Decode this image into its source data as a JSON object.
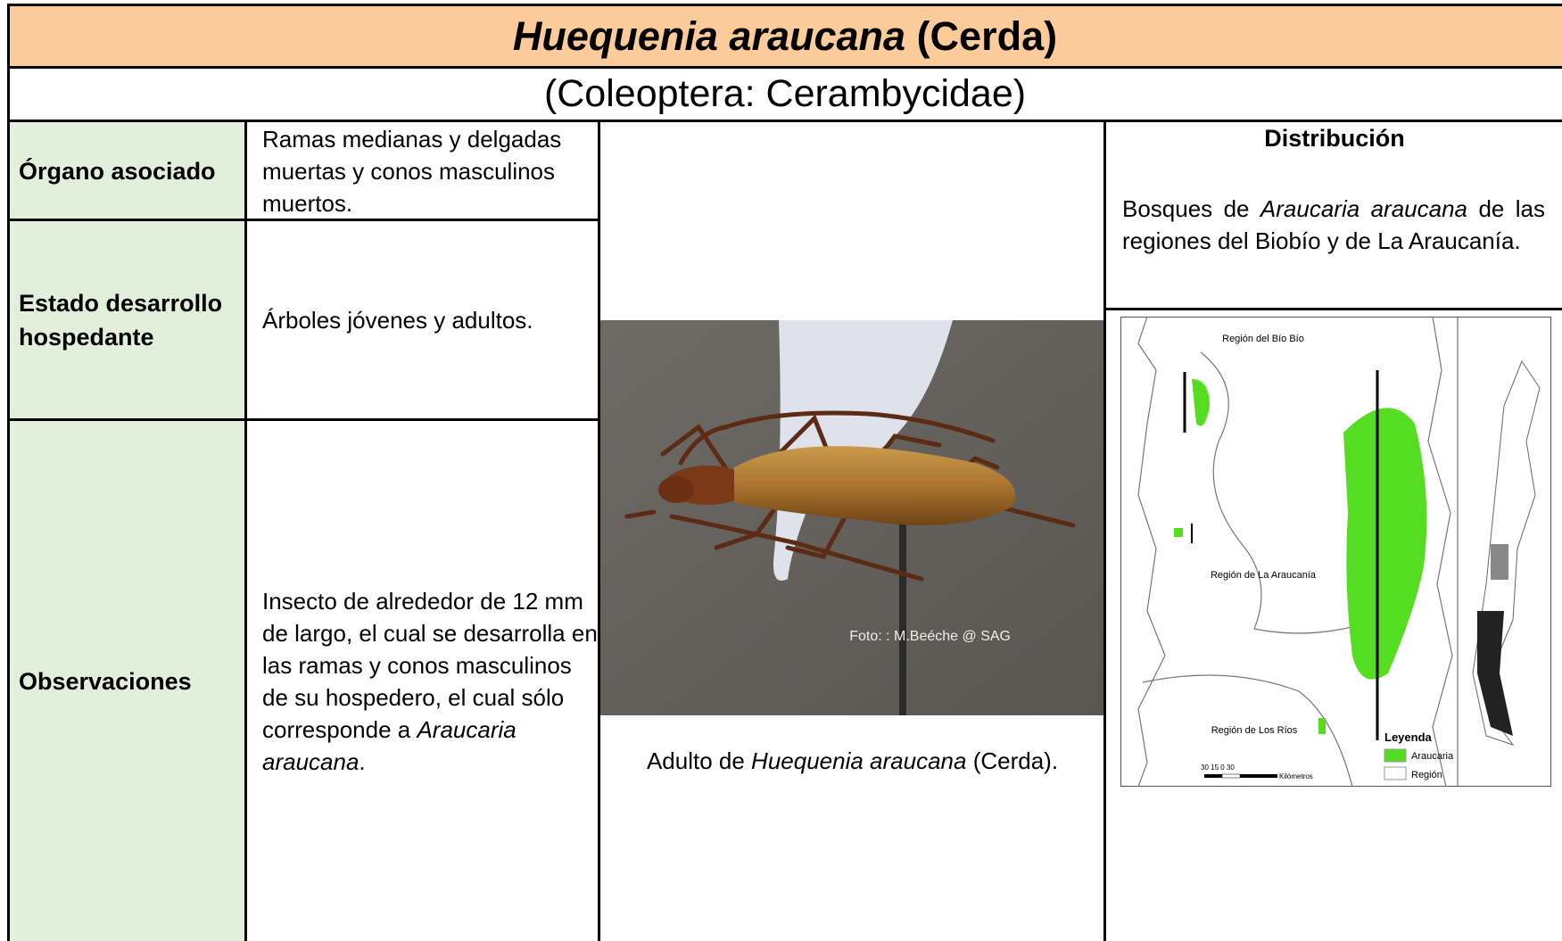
{
  "header": {
    "title_species": "Huequenia araucana",
    "title_author": "(Cerda)",
    "subtitle": "(Coleoptera: Cerambycidae)"
  },
  "rows": [
    {
      "label": "Órgano asociado",
      "value": "Ramas medianas y delgadas muertas y conos masculinos muertos."
    },
    {
      "label": "Estado desarrollo hospedante",
      "value": "Árboles jóvenes y adultos."
    },
    {
      "label": "Observaciones",
      "value": "Insecto de alrededor de 12 mm de largo, el cual se desarrolla en las ramas y conos masculinos de su hospedero, el cual sólo corresponde a",
      "value_italic": "Araucaria araucana",
      "value_end": "."
    }
  ],
  "photo": {
    "credit": "Foto: : M.Beéche @ SAG",
    "caption_prefix": "Adulto de",
    "caption_italic": "Huequenia araucana",
    "caption_suffix": "(Cerda)."
  },
  "distribution": {
    "heading": "Distribución",
    "text_prefix": "Bosques de",
    "text_italic": "Araucaria araucana",
    "text_suffix": "de las regiones del Biobío y de La Araucanía."
  },
  "map": {
    "labels": [
      "Región del Bío Bío",
      "Región de La Araucanía",
      "Región de Los Ríos"
    ],
    "legend_title": "Leyenda",
    "legend": [
      "Araucaria",
      "Región"
    ],
    "scale_labels": "30   15   0         30",
    "scale_unit": "Kilómetros"
  }
}
